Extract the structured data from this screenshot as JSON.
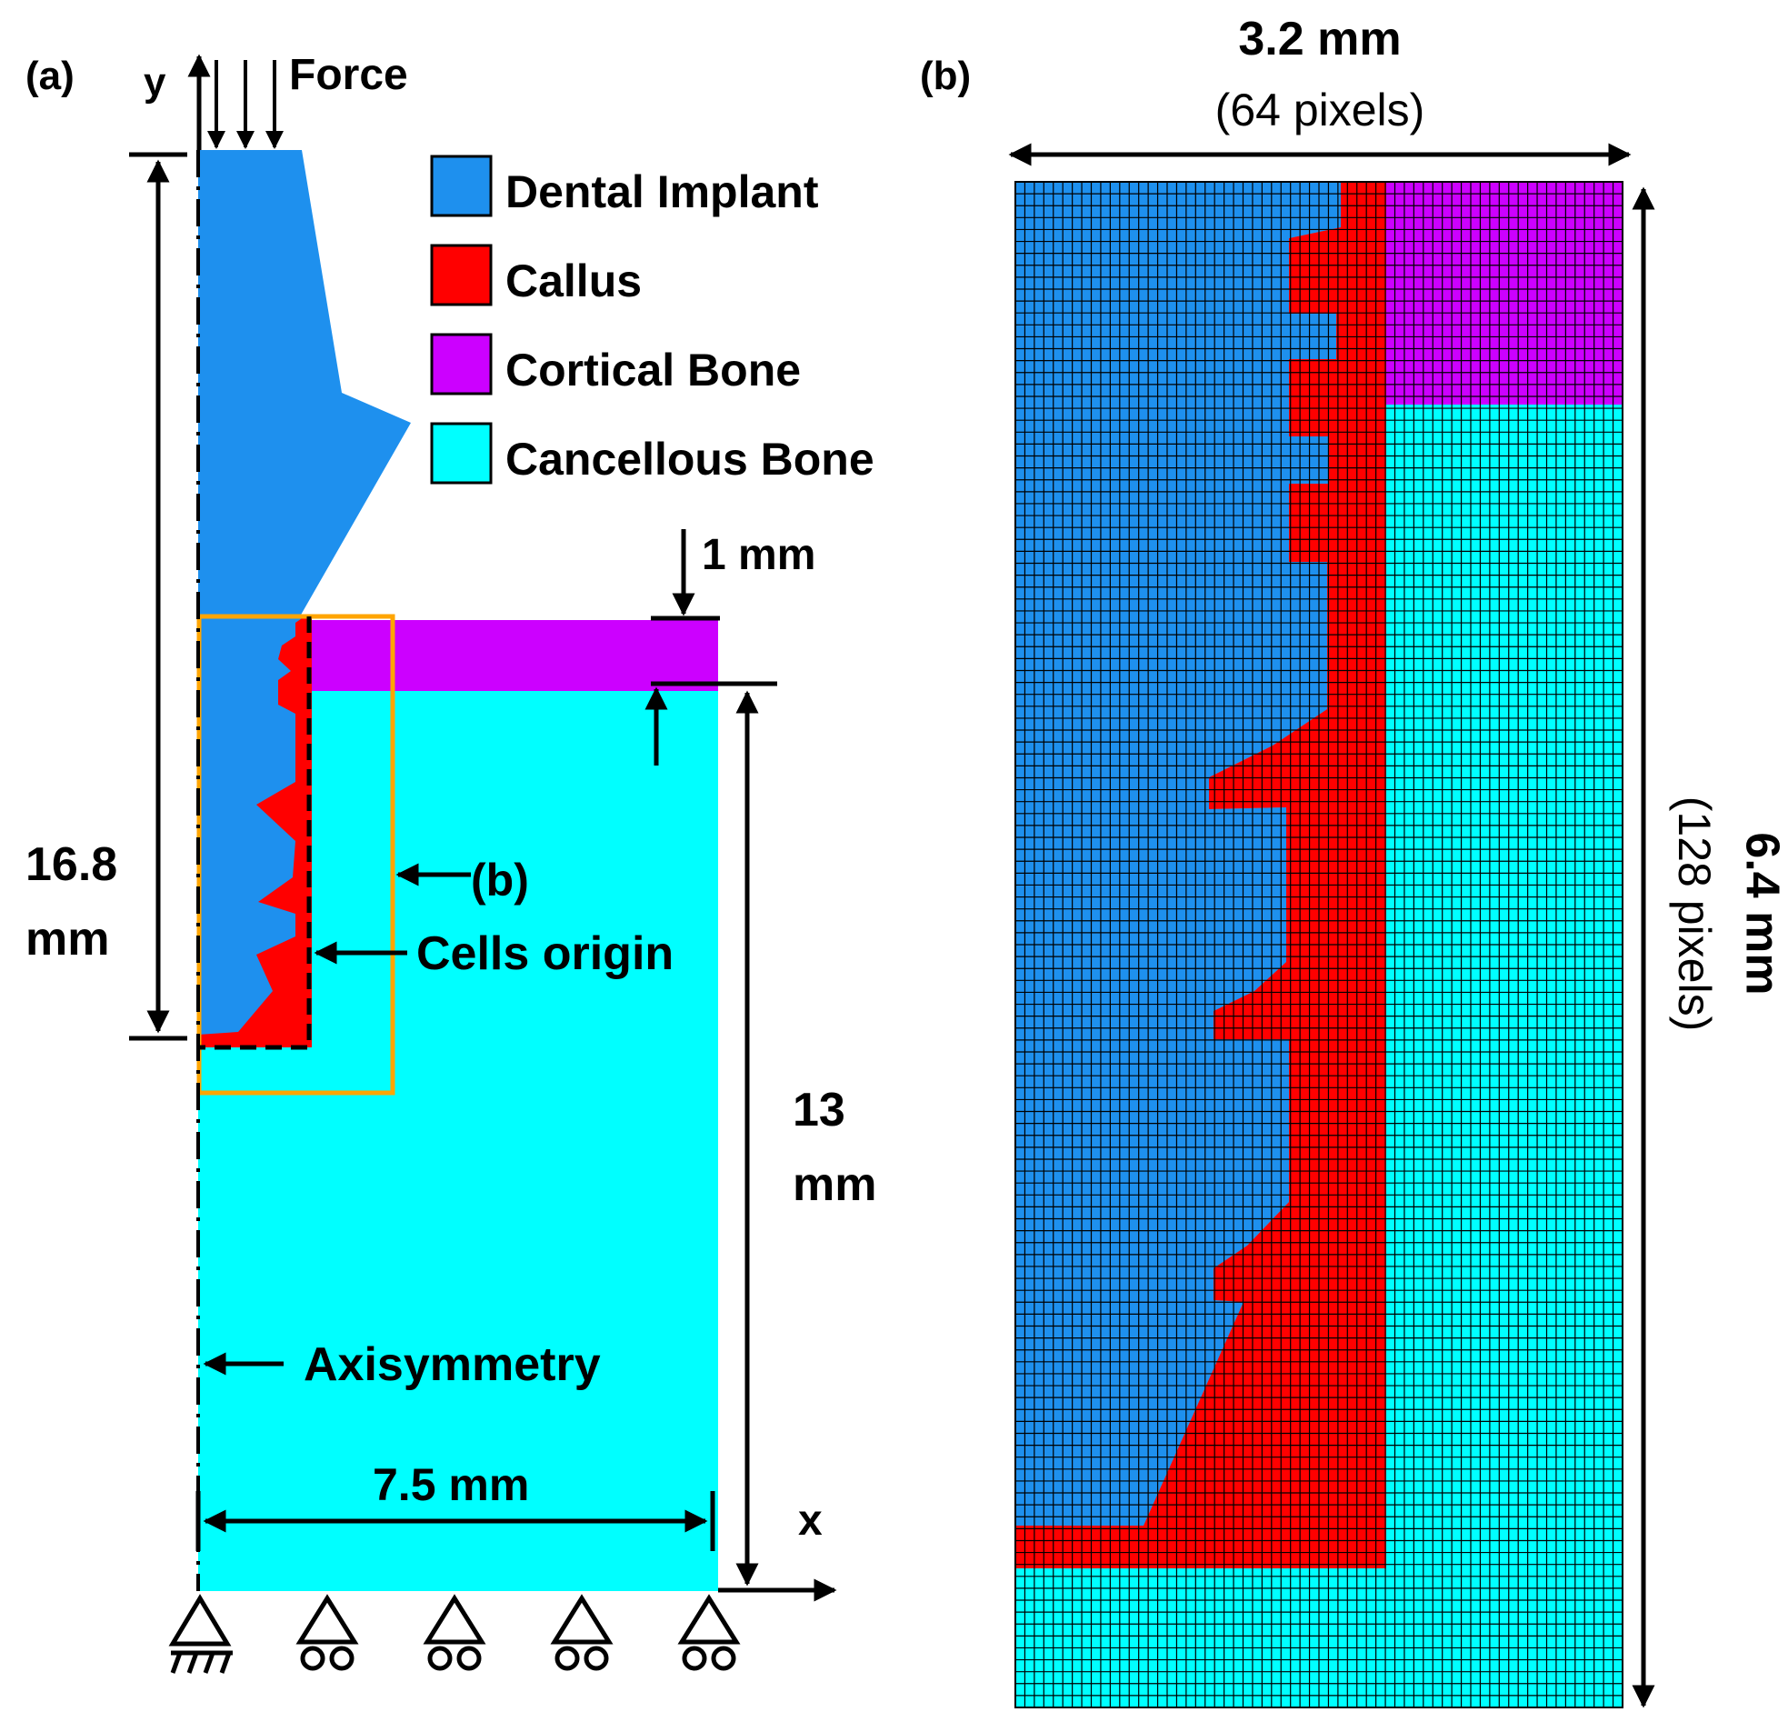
{
  "panel_a": {
    "label": "(a)",
    "y_axis": "y",
    "x_axis": "x",
    "force": "Force",
    "legend": [
      {
        "label": "Dental Implant",
        "color": "#1e90ee"
      },
      {
        "label": "Callus",
        "color": "#ff0000"
      },
      {
        "label": "Cortical Bone",
        "color": "#cc00ff"
      },
      {
        "label": "Cancellous Bone",
        "color": "#00ffff"
      }
    ],
    "dim_cortical": "1 mm",
    "dim_total_1": "16.8",
    "dim_total_2": "mm",
    "dim_bone_1": "13",
    "dim_bone_2": "mm",
    "dim_width": "7.5 mm",
    "ref_b": "(b)",
    "cells_origin": "Cells origin",
    "axisymmetry": "Axisymmetry"
  },
  "panel_b": {
    "label": "(b)",
    "width_mm": "3.2 mm",
    "width_px": "(64 pixels)",
    "height_mm": "6.4 mm",
    "height_px": "(128 pixels)",
    "grid_cols": 64,
    "grid_rows": 128
  },
  "colors": {
    "implant": "#1e90ee",
    "callus": "#ff0000",
    "cortical": "#cc00ff",
    "cancellous": "#00ffff",
    "roi_box": "#ffa500"
  }
}
